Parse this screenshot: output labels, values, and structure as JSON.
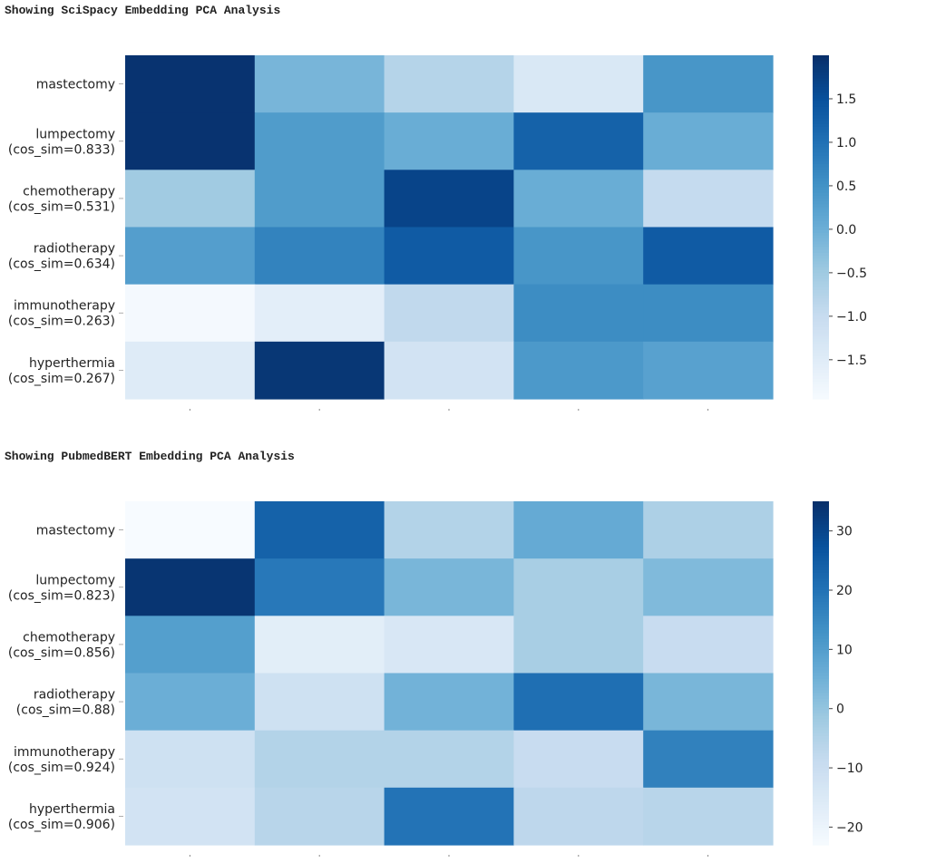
{
  "panels": [
    {
      "title": "Showing SciSpacy Embedding PCA Analysis"
    },
    {
      "title": "Showing PubmedBERT Embedding PCA Analysis"
    }
  ],
  "chart_data": [
    {
      "type": "heatmap",
      "title": "Showing SciSpacy Embedding PCA Analysis",
      "colormap": "Blues",
      "rows": [
        [
          "mastectomy"
        ],
        [
          "lumpectomy",
          "(cos_sim=0.833)"
        ],
        [
          "chemotherapy",
          "(cos_sim=0.531)"
        ],
        [
          "radiotherapy",
          "(cos_sim=0.634)"
        ],
        [
          "immunotherapy",
          "(cos_sim=0.263)"
        ],
        [
          "hyperthermia",
          "(cos_sim=0.267)"
        ]
      ],
      "columns": 5,
      "values": [
        [
          1.95,
          -0.1,
          -0.75,
          -1.35,
          0.45
        ],
        [
          1.95,
          0.35,
          0.05,
          1.25,
          0.05
        ],
        [
          -0.5,
          0.35,
          1.7,
          0.05,
          -0.95
        ],
        [
          0.3,
          0.75,
          1.35,
          0.45,
          1.35
        ],
        [
          -1.9,
          -1.55,
          -0.9,
          0.6,
          0.6
        ],
        [
          -1.45,
          1.9,
          -1.2,
          0.4,
          0.25
        ]
      ],
      "vmin": -1.95,
      "vmax": 2.0,
      "colorbar_ticks": [
        "1.5",
        "1.0",
        "0.5",
        "0.0",
        "−0.5",
        "−1.0",
        "−1.5"
      ],
      "colorbar_tick_values": [
        1.5,
        1.0,
        0.5,
        0.0,
        -0.5,
        -1.0,
        -1.5
      ]
    },
    {
      "type": "heatmap",
      "title": "Showing PubmedBERT Embedding PCA Analysis",
      "colormap": "Blues",
      "rows": [
        [
          "mastectomy"
        ],
        [
          "lumpectomy",
          "(cos_sim=0.823)"
        ],
        [
          "chemotherapy",
          "(cos_sim=0.856)"
        ],
        [
          "radiotherapy",
          "(cos_sim=0.88)"
        ],
        [
          "immunotherapy",
          "(cos_sim=0.924)"
        ],
        [
          "hyperthermia",
          "(cos_sim=0.906)"
        ]
      ],
      "columns": 5,
      "values": [
        [
          -23,
          24,
          -5,
          7,
          -4
        ],
        [
          34,
          19,
          4,
          -3,
          3
        ],
        [
          10,
          -17,
          -14,
          -3,
          -9
        ],
        [
          6,
          -11,
          5,
          21,
          4
        ],
        [
          -11,
          -5,
          -5,
          -9,
          17
        ],
        [
          -12,
          -6,
          20,
          -7,
          -6
        ]
      ],
      "vmin": -23,
      "vmax": 35,
      "colorbar_ticks": [
        "30",
        "20",
        "10",
        "0",
        "−10",
        "−20"
      ],
      "colorbar_tick_values": [
        30,
        20,
        10,
        0,
        -10,
        -20
      ]
    }
  ]
}
